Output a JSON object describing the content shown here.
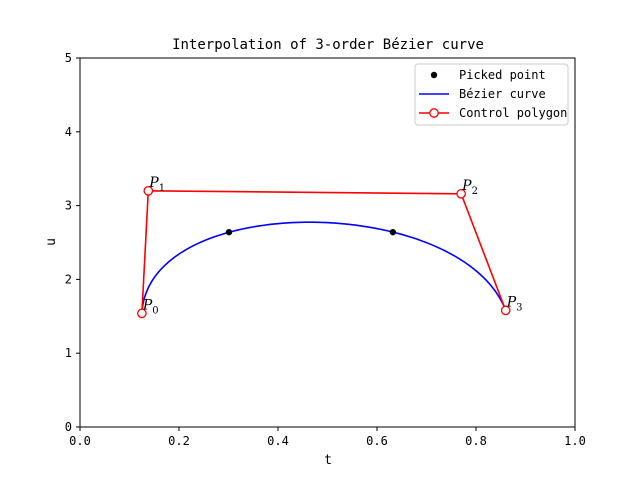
{
  "chart_data": {
    "type": "line",
    "title": "Interpolation of 3-order Bézier curve",
    "xlabel": "t",
    "ylabel": "u",
    "xlim": [
      0.0,
      1.0
    ],
    "ylim": [
      0,
      5
    ],
    "xticks": [
      "0.0",
      "0.2",
      "0.4",
      "0.6",
      "0.8",
      "1.0"
    ],
    "yticks": [
      "0",
      "1",
      "2",
      "3",
      "4",
      "5"
    ],
    "grid": false,
    "legend_position": "top-right",
    "legend": [
      {
        "label": "Picked point",
        "style": "marker",
        "color": "#000000"
      },
      {
        "label": "Bézier curve",
        "style": "line",
        "color": "#0000ff"
      },
      {
        "label": "Control polygon",
        "style": "line-marker",
        "color": "#ff0000"
      }
    ],
    "control_points": [
      {
        "label": "P",
        "sub": "0",
        "x": 0.125,
        "y": 1.54
      },
      {
        "label": "P",
        "sub": "1",
        "x": 0.138,
        "y": 3.2
      },
      {
        "label": "P",
        "sub": "2",
        "x": 0.77,
        "y": 3.16
      },
      {
        "label": "P",
        "sub": "3",
        "x": 0.86,
        "y": 1.58
      }
    ],
    "picked_points": [
      {
        "x": 0.301,
        "y": 2.64
      },
      {
        "x": 0.632,
        "y": 2.64
      }
    ],
    "colors": {
      "picked": "#000000",
      "curve": "#0000ff",
      "polygon": "#ff0000"
    }
  }
}
